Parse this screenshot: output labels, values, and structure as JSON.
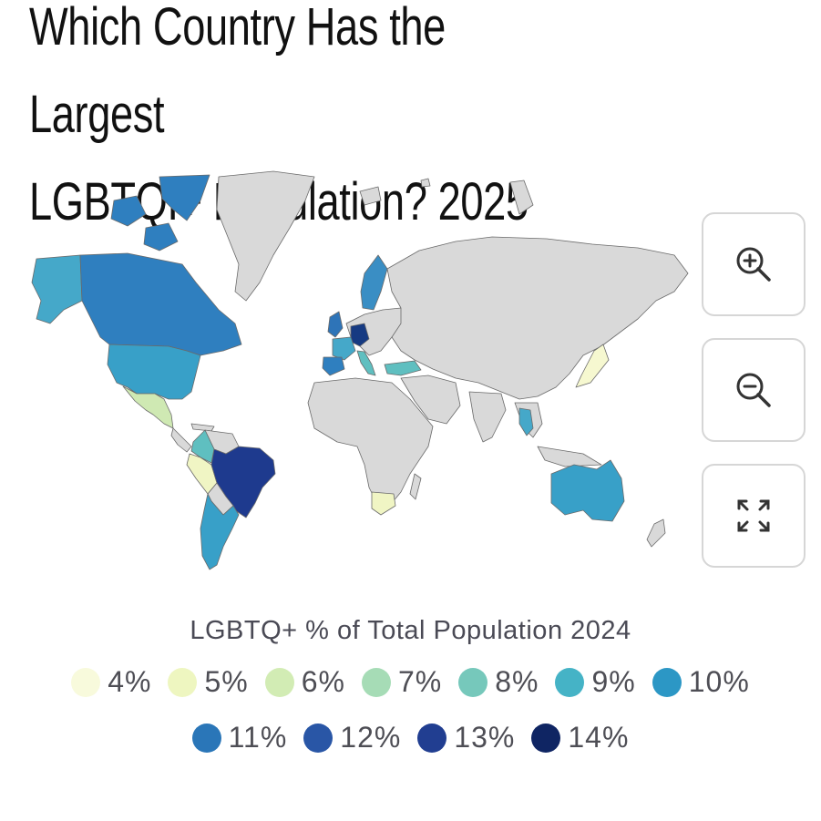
{
  "title": {
    "line1": "Which Country Has the Largest",
    "line2": "LGBTQI+ Population? 2025"
  },
  "map": {
    "no_data_color": "#d9d9d9",
    "border_color": "#6a6a6a",
    "regions": [
      {
        "name": "Alaska",
        "color": "#45a8c9"
      },
      {
        "name": "Canada",
        "color": "#2f7fbf"
      },
      {
        "name": "Canadian Arctic",
        "color": "#2f7fbf"
      },
      {
        "name": "Greenland",
        "color": "#d9d9d9"
      },
      {
        "name": "United States",
        "color": "#38a0c8"
      },
      {
        "name": "Mexico",
        "color": "#cfe9b3"
      },
      {
        "name": "Colombia",
        "color": "#5fbfc0"
      },
      {
        "name": "Peru",
        "color": "#f0f5c4"
      },
      {
        "name": "Brazil",
        "color": "#1e3a8e"
      },
      {
        "name": "Argentina",
        "color": "#38a0c8"
      },
      {
        "name": "United Kingdom",
        "color": "#2e74b8"
      },
      {
        "name": "Germany",
        "color": "#163a82"
      },
      {
        "name": "France",
        "color": "#45a8c9"
      },
      {
        "name": "Spain",
        "color": "#2f7fbf"
      },
      {
        "name": "Italy",
        "color": "#5fbfc0"
      },
      {
        "name": "Sweden",
        "color": "#3a8ec4"
      },
      {
        "name": "Turkey",
        "color": "#5fbfc0"
      },
      {
        "name": "South Africa",
        "color": "#f0f5c4"
      },
      {
        "name": "Thailand",
        "color": "#45a8c9"
      },
      {
        "name": "Japan",
        "color": "#f6f8d0"
      },
      {
        "name": "Australia",
        "color": "#38a0c8"
      }
    ]
  },
  "controls": {
    "zoom_in": "zoom-in",
    "zoom_out": "zoom-out",
    "fullscreen": "fullscreen"
  },
  "legend": {
    "title": "LGBTQ+ % of Total Population 2024",
    "items": [
      {
        "label": "4%",
        "color": "#f8fadc"
      },
      {
        "label": "5%",
        "color": "#eef6c0"
      },
      {
        "label": "6%",
        "color": "#d2ecb4"
      },
      {
        "label": "7%",
        "color": "#a6dcb6"
      },
      {
        "label": "8%",
        "color": "#76c8bb"
      },
      {
        "label": "9%",
        "color": "#45b3c6"
      },
      {
        "label": "10%",
        "color": "#2c97c5"
      },
      {
        "label": "11%",
        "color": "#2a76b8"
      },
      {
        "label": "12%",
        "color": "#2956a6"
      },
      {
        "label": "13%",
        "color": "#213e91"
      },
      {
        "label": "14%",
        "color": "#0f2563"
      }
    ]
  }
}
